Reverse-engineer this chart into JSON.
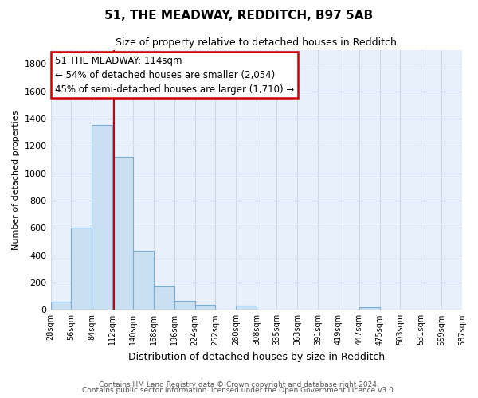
{
  "title": "51, THE MEADWAY, REDDITCH, B97 5AB",
  "subtitle": "Size of property relative to detached houses in Redditch",
  "xlabel": "Distribution of detached houses by size in Redditch",
  "ylabel": "Number of detached properties",
  "bar_color": "#c9dff2",
  "bar_edge_color": "#7aadd4",
  "background_color": "#e8f0fb",
  "grid_color": "#d0d8e8",
  "vline_color": "#cc0000",
  "property_value": 114,
  "bin_edges": [
    28,
    56,
    84,
    112,
    140,
    168,
    196,
    224,
    252,
    280,
    308,
    335,
    363,
    391,
    419,
    447,
    475,
    503,
    531,
    559,
    587
  ],
  "bar_heights": [
    60,
    600,
    1350,
    1120,
    430,
    175,
    65,
    38,
    0,
    30,
    0,
    0,
    0,
    0,
    0,
    20,
    0,
    0,
    0,
    0
  ],
  "ylim": [
    0,
    1900
  ],
  "yticks": [
    0,
    200,
    400,
    600,
    800,
    1000,
    1200,
    1400,
    1600,
    1800
  ],
  "annotation_title": "51 THE MEADWAY: 114sqm",
  "annotation_line1": "← 54% of detached houses are smaller (2,054)",
  "annotation_line2": "45% of semi-detached houses are larger (1,710) →",
  "footer_line1": "Contains HM Land Registry data © Crown copyright and database right 2024.",
  "footer_line2": "Contains public sector information licensed under the Open Government Licence v3.0."
}
